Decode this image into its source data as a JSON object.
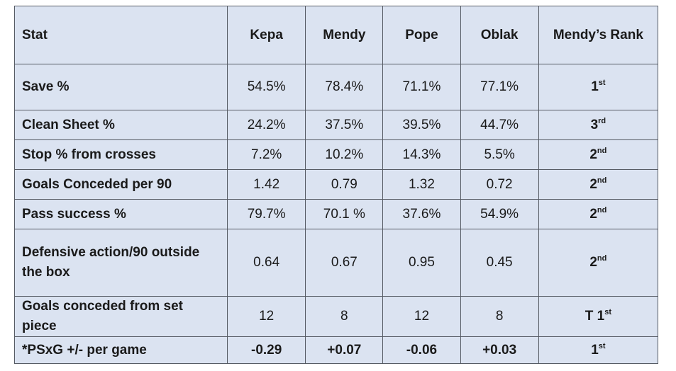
{
  "header": [
    "Stat",
    "Kepa",
    "Mendy",
    "Pope",
    "Oblak",
    "Mendy’s Rank"
  ],
  "rows": [
    {
      "stat": "Save %",
      "kepa": "54.5%",
      "mendy": "78.4%",
      "pope": "71.1%",
      "oblak": "77.1%",
      "rank": "1",
      "rank_suffix": "st"
    },
    {
      "stat": "Clean Sheet %",
      "kepa": "24.2%",
      "mendy": "37.5%",
      "pope": "39.5%",
      "oblak": "44.7%",
      "rank": "3",
      "rank_suffix": "rd"
    },
    {
      "stat": "Stop % from crosses",
      "kepa": "7.2%",
      "mendy": "10.2%",
      "pope": "14.3%",
      "oblak": "5.5%",
      "rank": "2",
      "rank_suffix": "nd"
    },
    {
      "stat": "Goals Conceded per 90",
      "kepa": "1.42",
      "mendy": "0.79",
      "pope": "1.32",
      "oblak": "0.72",
      "rank": "2",
      "rank_suffix": "nd"
    },
    {
      "stat": "Pass success %",
      "kepa": "79.7%",
      "mendy": "70.1 %",
      "pope": "37.6%",
      "oblak": "54.9%",
      "rank": "2",
      "rank_suffix": "nd"
    },
    {
      "stat": "Defensive action/90 outside the box",
      "kepa": "0.64",
      "mendy": "0.67",
      "pope": "0.95",
      "oblak": "0.45",
      "rank": "2",
      "rank_suffix": "nd"
    },
    {
      "stat": "Goals conceded from set piece",
      "kepa": "12",
      "mendy": "8",
      "pope": "12",
      "oblak": "8",
      "rank": "T 1",
      "rank_suffix": "st"
    },
    {
      "stat": "*PSxG +/- per game",
      "kepa": "-0.29",
      "mendy": "+0.07",
      "pope": "-0.06",
      "oblak": "+0.03",
      "rank": "1",
      "rank_suffix": "st"
    }
  ],
  "colors": {
    "cell_bg": "#dbe3f1",
    "border": "#555a63"
  }
}
